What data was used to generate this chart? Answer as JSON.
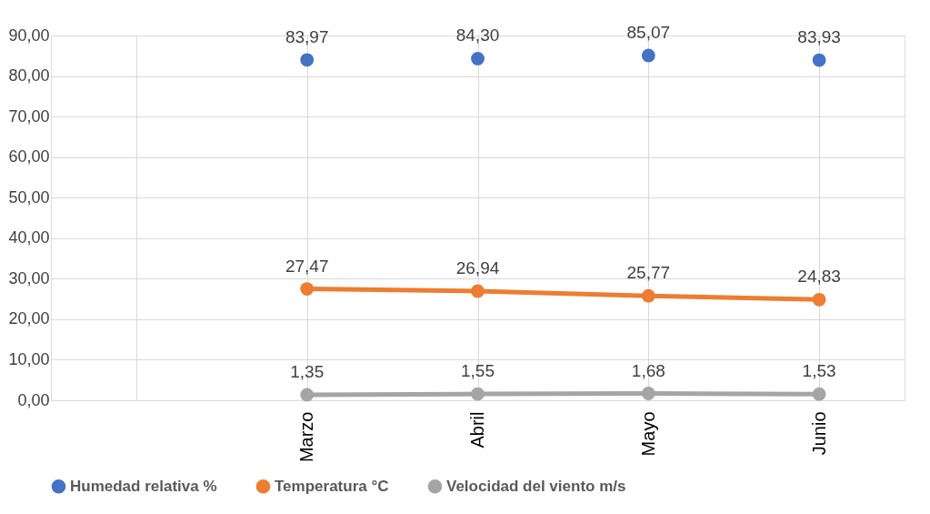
{
  "chart_data": {
    "type": "line",
    "categories": [
      null,
      "Marzo",
      "Abril",
      "Mayo",
      "Junio"
    ],
    "series": [
      {
        "name": "Humedad relativa %",
        "type": "scatter",
        "color": "#4472c4",
        "values": [
          null,
          83.97,
          84.3,
          85.07,
          83.93
        ],
        "value_labels": [
          null,
          "83,97",
          "84,30",
          "85,07",
          "83,93"
        ]
      },
      {
        "name": "Temperatura °C",
        "type": "line",
        "color": "#ed7d31",
        "values": [
          null,
          27.47,
          26.94,
          25.77,
          24.83
        ],
        "value_labels": [
          null,
          "27,47",
          "26,94",
          "25,77",
          "24,83"
        ]
      },
      {
        "name": "Velocidad del viento m/s",
        "type": "line",
        "color": "#a5a5a5",
        "values": [
          null,
          1.35,
          1.55,
          1.68,
          1.53
        ],
        "value_labels": [
          null,
          "1,35",
          "1,55",
          "1,68",
          "1,53"
        ]
      }
    ],
    "ylim": [
      0,
      90
    ],
    "yticks": [
      {
        "value": 0,
        "label": "0,00"
      },
      {
        "value": 10,
        "label": "10,00"
      },
      {
        "value": 20,
        "label": "20,00"
      },
      {
        "value": 30,
        "label": "30,00"
      },
      {
        "value": 40,
        "label": "40,00"
      },
      {
        "value": 50,
        "label": "50,00"
      },
      {
        "value": 60,
        "label": "60,00"
      },
      {
        "value": 70,
        "label": "70,00"
      },
      {
        "value": 80,
        "label": "80,00"
      },
      {
        "value": 90,
        "label": "90,00"
      }
    ],
    "grid": true,
    "legend": "bottom",
    "marker": "circle"
  }
}
